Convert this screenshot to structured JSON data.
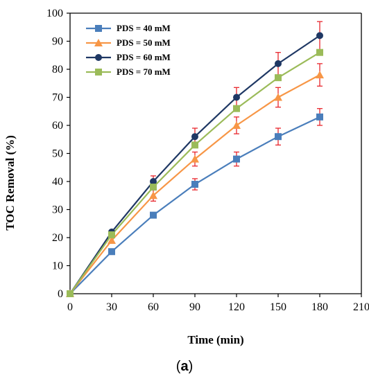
{
  "caption": {
    "open": "(",
    "letter": "a",
    "close": ")"
  },
  "chart_data": {
    "type": "line",
    "xlabel": "Time (min)",
    "ylabel": "TOC Removal (%)",
    "xlim": [
      0,
      210
    ],
    "ylim": [
      0,
      100
    ],
    "xticks": [
      "0",
      "30",
      "60",
      "90",
      "120",
      "150",
      "180",
      "210"
    ],
    "yticks": [
      "0",
      "10",
      "20",
      "30",
      "40",
      "50",
      "60",
      "70",
      "80",
      "90",
      "100"
    ],
    "grid": false,
    "legend_position": "top-left",
    "x": [
      0,
      30,
      60,
      90,
      120,
      150,
      180
    ],
    "series": [
      {
        "name": "PDS = 40 mM",
        "color": "#4a7ebb",
        "marker": "square",
        "values": [
          0,
          15,
          28,
          39,
          48,
          56,
          63
        ],
        "errors": [
          0,
          0,
          0,
          2,
          2.5,
          3,
          3
        ]
      },
      {
        "name": "PDS = 50 mM",
        "color": "#f79646",
        "marker": "triangle",
        "values": [
          0,
          19,
          35,
          48,
          60,
          70,
          78
        ],
        "errors": [
          0,
          0,
          2,
          2.5,
          3,
          3.5,
          4
        ]
      },
      {
        "name": "PDS = 60 mM",
        "color": "#1f3864",
        "marker": "circle",
        "values": [
          0,
          22,
          40,
          56,
          70,
          82,
          92
        ],
        "errors": [
          0,
          0,
          2,
          3,
          3.5,
          4,
          5
        ]
      },
      {
        "name": "PDS = 70 mM",
        "color": "#9bbb59",
        "marker": "square",
        "values": [
          0,
          21,
          38,
          53,
          66,
          77,
          86
        ],
        "errors": [
          0,
          0,
          0,
          0,
          0,
          0,
          0
        ]
      }
    ],
    "error_bar_color": "#e8262d"
  }
}
